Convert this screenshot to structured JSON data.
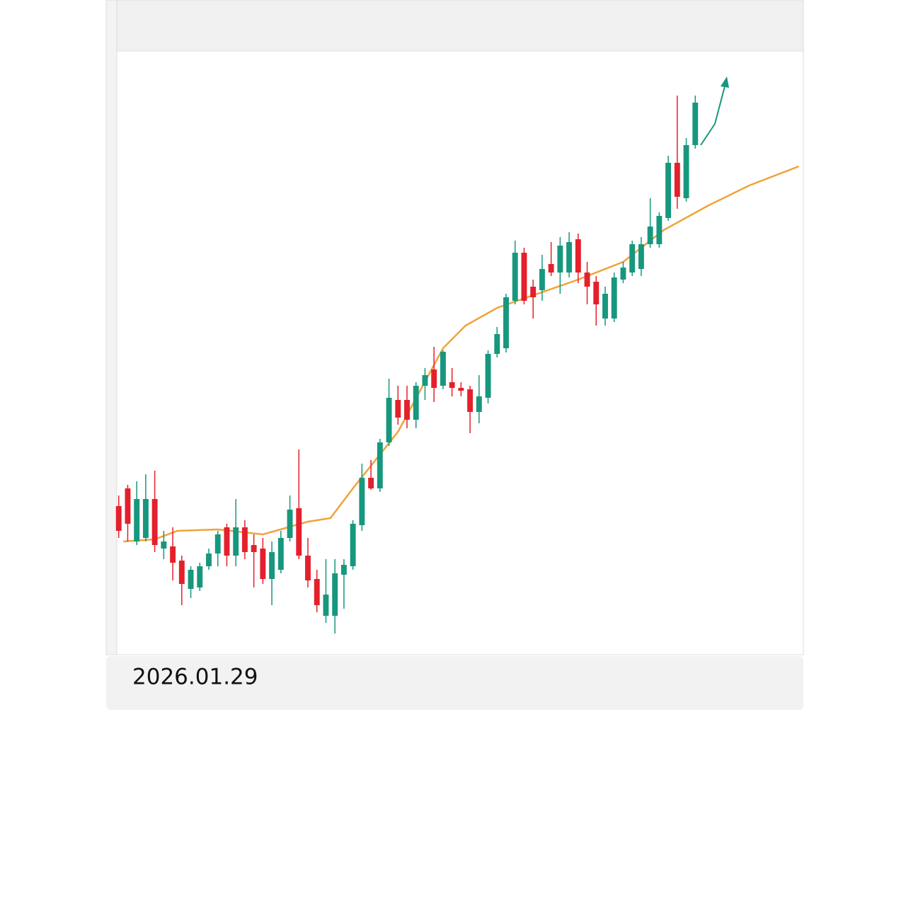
{
  "chart_data": {
    "type": "candlestick",
    "open": [
      210,
      235,
      160,
      165,
      220,
      150,
      153,
      133,
      93,
      95,
      125,
      143,
      180,
      140,
      180,
      155,
      150,
      107,
      120,
      165,
      207,
      140,
      107,
      55,
      55,
      113,
      125,
      183,
      250,
      235,
      300,
      360,
      360,
      332,
      380,
      403,
      380,
      385,
      377,
      375,
      343,
      363,
      425,
      433,
      500,
      568,
      520,
      515,
      552,
      540,
      540,
      587,
      540,
      527,
      475,
      475,
      530,
      540,
      545,
      580,
      580,
      617,
      695,
      645,
      720
    ],
    "high": [
      225,
      240,
      245,
      255,
      260,
      175,
      180,
      140,
      125,
      130,
      150,
      175,
      185,
      220,
      190,
      170,
      165,
      160,
      175,
      225,
      290,
      165,
      120,
      135,
      135,
      135,
      190,
      270,
      275,
      305,
      390,
      380,
      380,
      385,
      405,
      435,
      430,
      405,
      385,
      380,
      395,
      430,
      463,
      510,
      585,
      575,
      530,
      565,
      583,
      590,
      597,
      595,
      555,
      535,
      520,
      540,
      555,
      585,
      590,
      645,
      625,
      705,
      790,
      730,
      790
    ],
    "low": [
      165,
      160,
      155,
      160,
      145,
      135,
      105,
      70,
      80,
      90,
      120,
      125,
      125,
      125,
      135,
      95,
      100,
      70,
      115,
      160,
      135,
      95,
      60,
      45,
      30,
      65,
      120,
      175,
      233,
      230,
      295,
      325,
      320,
      320,
      360,
      357,
      375,
      365,
      365,
      313,
      327,
      355,
      420,
      427,
      495,
      495,
      475,
      500,
      535,
      510,
      533,
      525,
      495,
      465,
      465,
      470,
      525,
      535,
      535,
      575,
      575,
      613,
      630,
      640,
      715
    ],
    "close": [
      175,
      185,
      220,
      220,
      155,
      160,
      130,
      100,
      120,
      125,
      143,
      170,
      140,
      180,
      145,
      145,
      107,
      145,
      165,
      205,
      140,
      105,
      70,
      85,
      115,
      127,
      185,
      250,
      235,
      300,
      363,
      335,
      332,
      380,
      395,
      377,
      428,
      377,
      373,
      343,
      365,
      425,
      453,
      505,
      568,
      500,
      505,
      545,
      540,
      578,
      583,
      540,
      520,
      495,
      510,
      533,
      547,
      580,
      580,
      605,
      620,
      695,
      647,
      720,
      780
    ],
    "up_color": "#17977d",
    "down_color": "#e4202c",
    "moving_average": {
      "color": "#f0a33a",
      "x": [
        0.5,
        4,
        6.5,
        11,
        16,
        21,
        23.5,
        26,
        31,
        36,
        38.5,
        42,
        46.5,
        51,
        56,
        60.5,
        65.5,
        70,
        75.5
      ],
      "values": [
        160,
        163,
        175,
        177,
        170,
        188,
        193,
        235,
        315,
        433,
        465,
        490,
        510,
        530,
        555,
        600,
        635,
        663,
        690
      ]
    },
    "xlim": [
      -1,
      76
    ],
    "ylim": [
      0,
      853
    ]
  },
  "footer": {
    "date": "2026.01.29"
  }
}
